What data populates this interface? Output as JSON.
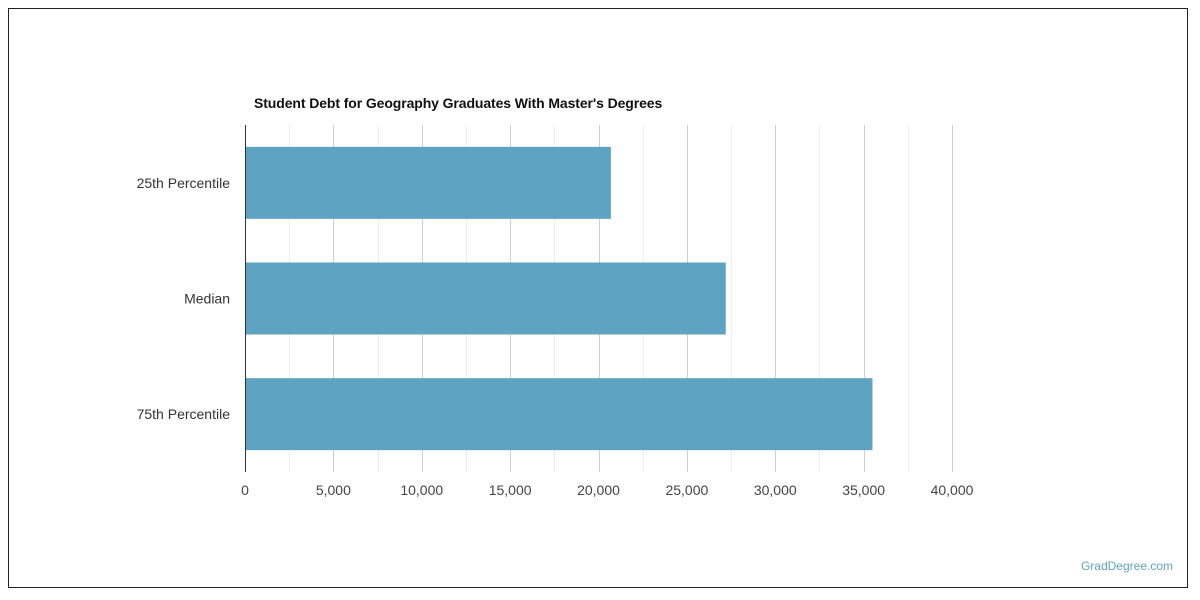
{
  "chart_data": {
    "type": "bar",
    "orientation": "horizontal",
    "title": "Student Debt for Geography Graduates With Master's Degrees",
    "categories": [
      "25th Percentile",
      "Median",
      "75th Percentile"
    ],
    "values": [
      20700,
      27200,
      35500
    ],
    "xlim": [
      0,
      40000
    ],
    "xticks": [
      0,
      5000,
      10000,
      15000,
      20000,
      25000,
      30000,
      35000,
      40000
    ],
    "xtick_labels": [
      "0",
      "5,000",
      "10,000",
      "15,000",
      "20,000",
      "25,000",
      "30,000",
      "35,000",
      "40,000"
    ],
    "grid": true,
    "bar_color": "#5ea3c1"
  },
  "watermark": "GradDegree.com"
}
